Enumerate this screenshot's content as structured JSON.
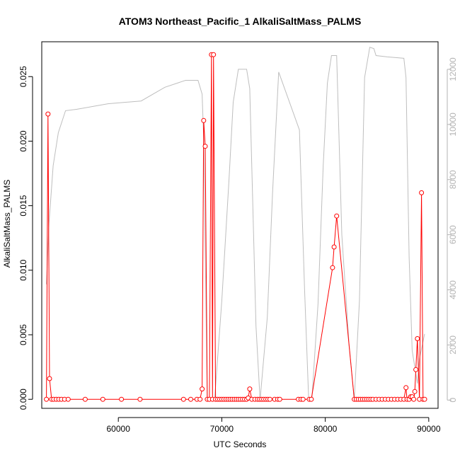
{
  "chart_data": {
    "type": "line",
    "title": "ATOM3 Northeast_Pacific_1 AlkaliSaltMass_PALMS",
    "xlabel": "UTC Seconds",
    "ylabel": "AlkaliSaltMass_PALMS",
    "xlim": [
      52600,
      90900
    ],
    "ylim": [
      -0.0007,
      0.0277
    ],
    "y2lim": [
      -300,
      13000
    ],
    "x_ticks": [
      60000,
      70000,
      80000,
      90000
    ],
    "y_ticks": [
      0.0,
      0.005,
      0.01,
      0.015,
      0.02,
      0.025
    ],
    "y_tick_labels": [
      "0.000",
      "0.005",
      "0.010",
      "0.015",
      "0.020",
      "0.025"
    ],
    "y2_ticks": [
      0,
      2000,
      4000,
      6000,
      8000,
      10000,
      12000
    ],
    "y2_tick_labels": [
      "0",
      "2000",
      "4000",
      "6000",
      "8000",
      "10000",
      "12000"
    ],
    "colors": {
      "primary": "#ff0000",
      "secondary": "#bebebe",
      "axes": "#000000",
      "right_axis": "#b3b3b3"
    },
    "series": [
      {
        "role": "primary",
        "marker": "open-circle",
        "points": [
          [
            53050,
            0.0
          ],
          [
            53200,
            0.0221
          ],
          [
            53350,
            0.0016
          ],
          [
            53550,
            0.0
          ],
          [
            53750,
            0.0
          ],
          [
            54000,
            0.0
          ],
          [
            54250,
            0.0
          ],
          [
            54500,
            0.0
          ],
          [
            54800,
            0.0
          ],
          [
            55150,
            0.0
          ],
          [
            56800,
            0.0
          ],
          [
            58500,
            0.0
          ],
          [
            60300,
            0.0
          ],
          [
            62100,
            0.0
          ],
          [
            66300,
            0.0
          ],
          [
            67000,
            0.0
          ],
          [
            67600,
            0.0
          ],
          [
            67900,
            0.0
          ],
          [
            68100,
            0.0008
          ],
          [
            68250,
            0.0216
          ],
          [
            68400,
            0.0196
          ],
          [
            68600,
            0.0
          ],
          [
            68800,
            0.0
          ],
          [
            69000,
            0.0267
          ],
          [
            69100,
            0.0
          ],
          [
            69200,
            0.0267
          ],
          [
            69400,
            0.0
          ],
          [
            69600,
            0.0
          ],
          [
            69800,
            0.0
          ],
          [
            70000,
            0.0
          ],
          [
            70200,
            0.0
          ],
          [
            70400,
            0.0
          ],
          [
            70600,
            0.0
          ],
          [
            70800,
            0.0
          ],
          [
            71000,
            0.0
          ],
          [
            71200,
            0.0
          ],
          [
            71400,
            0.0
          ],
          [
            71600,
            0.0
          ],
          [
            71800,
            0.0
          ],
          [
            72000,
            0.0
          ],
          [
            72200,
            0.0
          ],
          [
            72400,
            0.0
          ],
          [
            72550,
            0.0001
          ],
          [
            72700,
            0.0008
          ],
          [
            72900,
            0.0
          ],
          [
            73200,
            0.0
          ],
          [
            73450,
            0.0
          ],
          [
            73650,
            0.0
          ],
          [
            73850,
            0.0
          ],
          [
            74050,
            0.0
          ],
          [
            74250,
            0.0
          ],
          [
            74450,
            0.0
          ],
          [
            74650,
            0.0
          ],
          [
            75100,
            0.0
          ],
          [
            75400,
            0.0
          ],
          [
            75600,
            0.0
          ],
          [
            77400,
            0.0
          ],
          [
            77650,
            0.0
          ],
          [
            77850,
            0.0
          ],
          [
            78450,
            0.0
          ],
          [
            78650,
            0.0
          ],
          [
            80700,
            0.0102
          ],
          [
            80850,
            0.0118
          ],
          [
            81100,
            0.0142
          ],
          [
            82800,
            0.0
          ],
          [
            83000,
            0.0
          ],
          [
            83200,
            0.0
          ],
          [
            83400,
            0.0
          ],
          [
            83600,
            0.0
          ],
          [
            83800,
            0.0
          ],
          [
            84000,
            0.0
          ],
          [
            84200,
            0.0
          ],
          [
            84400,
            0.0
          ],
          [
            84600,
            0.0
          ],
          [
            84900,
            0.0
          ],
          [
            85200,
            0.0
          ],
          [
            85500,
            0.0
          ],
          [
            85800,
            0.0
          ],
          [
            86100,
            0.0
          ],
          [
            86400,
            0.0
          ],
          [
            86700,
            0.0
          ],
          [
            87000,
            0.0
          ],
          [
            87300,
            0.0
          ],
          [
            87600,
            0.0
          ],
          [
            87800,
            0.0009
          ],
          [
            87900,
            0.0
          ],
          [
            88100,
            0.0
          ],
          [
            88250,
            0.0002
          ],
          [
            88400,
            0.0002
          ],
          [
            88550,
            0.0
          ],
          [
            88650,
            0.0006
          ],
          [
            88750,
            0.0023
          ],
          [
            88900,
            0.0047
          ],
          [
            89100,
            0.0
          ],
          [
            89300,
            0.016
          ],
          [
            89450,
            0.0
          ],
          [
            89600,
            0.0
          ]
        ]
      },
      {
        "role": "secondary",
        "points": [
          [
            53050,
            4200
          ],
          [
            53300,
            6400
          ],
          [
            53700,
            8500
          ],
          [
            54200,
            9700
          ],
          [
            54900,
            10500
          ],
          [
            56000,
            10550
          ],
          [
            57500,
            10650
          ],
          [
            59000,
            10750
          ],
          [
            60500,
            10800
          ],
          [
            62200,
            10850
          ],
          [
            64500,
            11350
          ],
          [
            66500,
            11600
          ],
          [
            67700,
            11600
          ],
          [
            68100,
            11100
          ],
          [
            68250,
            9500
          ],
          [
            68600,
            0
          ],
          [
            69300,
            0
          ],
          [
            70000,
            3600
          ],
          [
            70700,
            8000
          ],
          [
            71100,
            10800
          ],
          [
            71600,
            12000
          ],
          [
            72400,
            12000
          ],
          [
            72700,
            11300
          ],
          [
            73300,
            2700
          ],
          [
            73700,
            0
          ],
          [
            74400,
            3000
          ],
          [
            74900,
            7500
          ],
          [
            75500,
            11900
          ],
          [
            77500,
            9800
          ],
          [
            78000,
            4000
          ],
          [
            78400,
            0
          ],
          [
            78700,
            0
          ],
          [
            79300,
            3500
          ],
          [
            79800,
            8500
          ],
          [
            80200,
            11500
          ],
          [
            80600,
            12500
          ],
          [
            81100,
            12500
          ],
          [
            81600,
            6000
          ],
          [
            82300,
            2000
          ],
          [
            82800,
            0
          ],
          [
            83300,
            3600
          ],
          [
            83800,
            11700
          ],
          [
            84300,
            12800
          ],
          [
            84700,
            12750
          ],
          [
            84900,
            12500
          ],
          [
            86000,
            12450
          ],
          [
            87600,
            12400
          ],
          [
            87800,
            11700
          ],
          [
            88100,
            5200
          ],
          [
            88400,
            1800
          ],
          [
            88900,
            600
          ],
          [
            89100,
            1500
          ],
          [
            89600,
            2400
          ]
        ]
      }
    ]
  }
}
